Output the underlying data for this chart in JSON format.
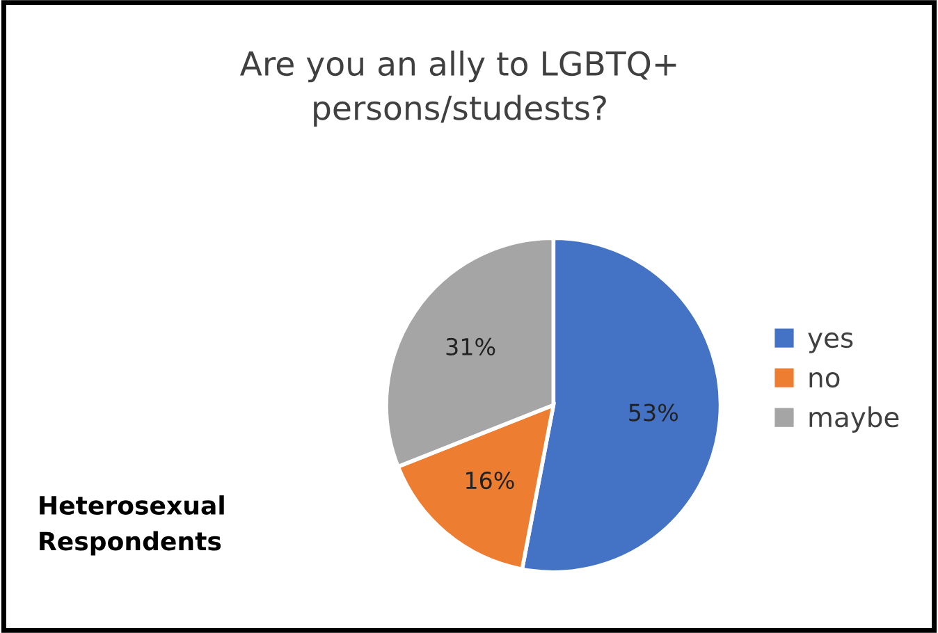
{
  "chart_data": {
    "type": "pie",
    "title": "Are you an ally to LGBTQ+\npersons/studests?",
    "categories": [
      "yes",
      "no",
      "maybe"
    ],
    "values": [
      53,
      16,
      31
    ],
    "colors": [
      "#4472c4",
      "#ed7d31",
      "#a5a5a5"
    ],
    "value_labels": [
      "53%",
      "16%",
      "31%"
    ],
    "legend": "right",
    "annotations": [
      "Heterosexual\nRespondents"
    ]
  }
}
